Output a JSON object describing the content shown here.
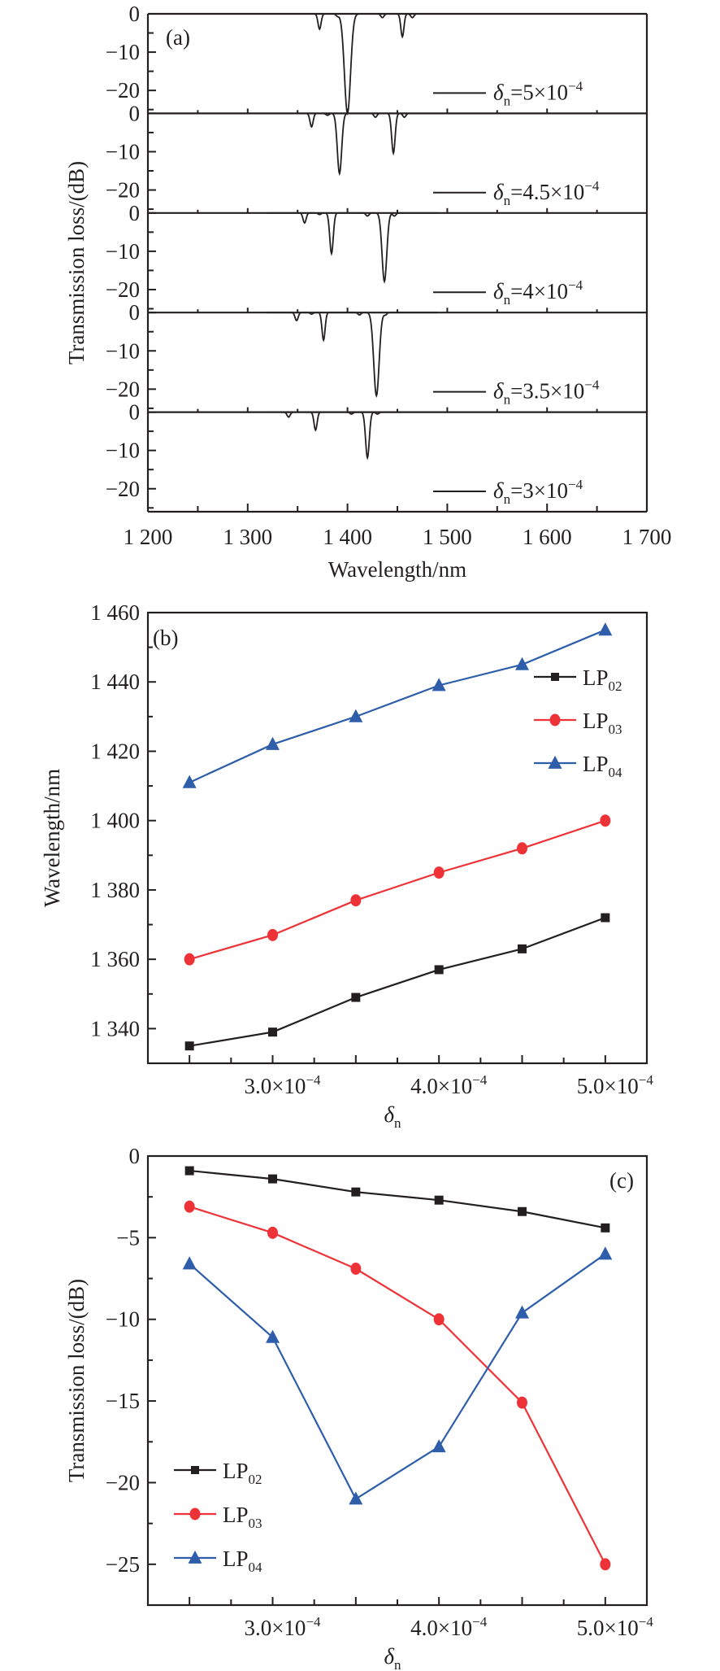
{
  "chart_data": [
    {
      "id": "a",
      "type": "line",
      "panel_label": "(a)",
      "title": "",
      "xlabel": "Wavelength/nm",
      "ylabel": "Transmission loss/(dB)",
      "xlim": [
        1200,
        1700
      ],
      "xticks": [
        1200,
        1300,
        1400,
        1500,
        1600,
        1700
      ],
      "xtick_labels": [
        "1 200",
        "1 300",
        "1 400",
        "1 500",
        "1 600",
        "1 700"
      ],
      "ylim": [
        -26,
        0
      ],
      "yticks": [
        0,
        -10,
        -20
      ],
      "ytick_labels": [
        "0",
        "−10",
        "−20"
      ],
      "grid": false,
      "legend_placement": "bottom-right of each subpanel",
      "color": "#231f20",
      "subpanels": [
        {
          "legend": {
            "symbol": "δ",
            "sub": "n",
            "text": "=5×10",
            "sup": "−4"
          },
          "delta_n": 0.0005,
          "dips": [
            {
              "wavelength": 1372,
              "depth": -4.0
            },
            {
              "wavelength": 1390,
              "depth": -0.6
            },
            {
              "wavelength": 1400,
              "depth": -26.0
            },
            {
              "wavelength": 1435,
              "depth": -1.0
            },
            {
              "wavelength": 1455,
              "depth": -6.0
            },
            {
              "wavelength": 1465,
              "depth": -1.0
            }
          ]
        },
        {
          "legend": {
            "symbol": "δ",
            "sub": "n",
            "text": "=4.5×10",
            "sup": "−4"
          },
          "delta_n": 0.00045,
          "dips": [
            {
              "wavelength": 1364,
              "depth": -3.5
            },
            {
              "wavelength": 1380,
              "depth": -0.5
            },
            {
              "wavelength": 1392,
              "depth": -15.7
            },
            {
              "wavelength": 1428,
              "depth": -1.0
            },
            {
              "wavelength": 1446,
              "depth": -10.4
            },
            {
              "wavelength": 1457,
              "depth": -1.0
            }
          ]
        },
        {
          "legend": {
            "symbol": "δ",
            "sub": "n",
            "text": "=4×10",
            "sup": "−4"
          },
          "delta_n": 0.0004,
          "dips": [
            {
              "wavelength": 1357,
              "depth": -2.6
            },
            {
              "wavelength": 1372,
              "depth": -0.4
            },
            {
              "wavelength": 1384,
              "depth": -10.6
            },
            {
              "wavelength": 1420,
              "depth": -0.8
            },
            {
              "wavelength": 1437,
              "depth": -17.9
            },
            {
              "wavelength": 1447,
              "depth": -0.8
            }
          ]
        },
        {
          "legend": {
            "symbol": "δ",
            "sub": "n",
            "text": "=3.5×10",
            "sup": "−4"
          },
          "delta_n": 0.00035,
          "dips": [
            {
              "wavelength": 1349,
              "depth": -2.1
            },
            {
              "wavelength": 1364,
              "depth": -0.4
            },
            {
              "wavelength": 1376,
              "depth": -7.2
            },
            {
              "wavelength": 1412,
              "depth": -0.6
            },
            {
              "wavelength": 1429,
              "depth": -21.7
            },
            {
              "wavelength": 1438,
              "depth": -0.6
            }
          ]
        },
        {
          "legend": {
            "symbol": "δ",
            "sub": "n",
            "text": "=3×10",
            "sup": "−4"
          },
          "delta_n": 0.0003,
          "dips": [
            {
              "wavelength": 1341,
              "depth": -1.3
            },
            {
              "wavelength": 1368,
              "depth": -4.7
            },
            {
              "wavelength": 1404,
              "depth": -0.5
            },
            {
              "wavelength": 1420,
              "depth": -11.9
            },
            {
              "wavelength": 1430,
              "depth": -0.5
            }
          ]
        }
      ]
    },
    {
      "id": "b",
      "type": "line",
      "panel_label": "(b)",
      "title": "",
      "xlabel": {
        "symbol": "δ",
        "sub": "n"
      },
      "ylabel": "Wavelength/nm",
      "x": [
        0.00025,
        0.0003,
        0.00035,
        0.0004,
        0.00045,
        0.0005
      ],
      "xlim": [
        0.000225,
        0.000525
      ],
      "xticks": [
        0.0003,
        0.0004,
        0.0005
      ],
      "xtick_labels": [
        {
          "text": "3.0×10",
          "sup": "−4"
        },
        {
          "text": "4.0×10",
          "sup": "−4"
        },
        {
          "text": "5.0×10",
          "sup": "−4"
        }
      ],
      "ylim": [
        1330,
        1460
      ],
      "yticks": [
        1340,
        1360,
        1380,
        1400,
        1420,
        1440,
        1460
      ],
      "ytick_labels": [
        "1 340",
        "1 360",
        "1 380",
        "1 400",
        "1 420",
        "1 440",
        "1 460"
      ],
      "grid": false,
      "legend_placement": "top-right",
      "series": [
        {
          "name": "LP",
          "sub": "02",
          "marker": "square",
          "color": "#231f20",
          "values": [
            1335,
            1339,
            1349,
            1357,
            1363,
            1372
          ]
        },
        {
          "name": "LP",
          "sub": "03",
          "marker": "circle",
          "color": "#ee3338",
          "values": [
            1360,
            1367,
            1377,
            1385,
            1392,
            1400
          ]
        },
        {
          "name": "LP",
          "sub": "04",
          "marker": "triangle",
          "color": "#2e5eaa",
          "values": [
            1411,
            1422,
            1430,
            1439,
            1445,
            1455
          ]
        }
      ]
    },
    {
      "id": "c",
      "type": "line",
      "panel_label": "(c)",
      "title": "",
      "xlabel": {
        "symbol": "δ",
        "sub": "n"
      },
      "ylabel": "Transmission loss/(dB)",
      "x": [
        0.00025,
        0.0003,
        0.00035,
        0.0004,
        0.00045,
        0.0005
      ],
      "xlim": [
        0.000225,
        0.000525
      ],
      "xticks": [
        0.0003,
        0.0004,
        0.0005
      ],
      "xtick_labels": [
        {
          "text": "3.0×10",
          "sup": "−4"
        },
        {
          "text": "4.0×10",
          "sup": "−4"
        },
        {
          "text": "5.0×10",
          "sup": "−4"
        }
      ],
      "ylim": [
        -27.5,
        0
      ],
      "yticks": [
        0,
        -5,
        -10,
        -15,
        -20,
        -25
      ],
      "ytick_labels": [
        "0",
        "−5",
        "−10",
        "−15",
        "−20",
        "−25"
      ],
      "grid": false,
      "legend_placement": "bottom-left",
      "series": [
        {
          "name": "LP",
          "sub": "02",
          "marker": "square",
          "color": "#231f20",
          "values": [
            -0.9,
            -1.4,
            -2.2,
            -2.7,
            -3.4,
            -4.4
          ]
        },
        {
          "name": "LP",
          "sub": "03",
          "marker": "circle",
          "color": "#ee3338",
          "values": [
            -3.1,
            -4.7,
            -6.9,
            -10.0,
            -15.1,
            -25.0
          ]
        },
        {
          "name": "LP",
          "sub": "04",
          "marker": "triangle",
          "color": "#2e5eaa",
          "values": [
            -6.6,
            -11.1,
            -21.0,
            -17.8,
            -9.6,
            -6.0
          ]
        }
      ]
    }
  ]
}
